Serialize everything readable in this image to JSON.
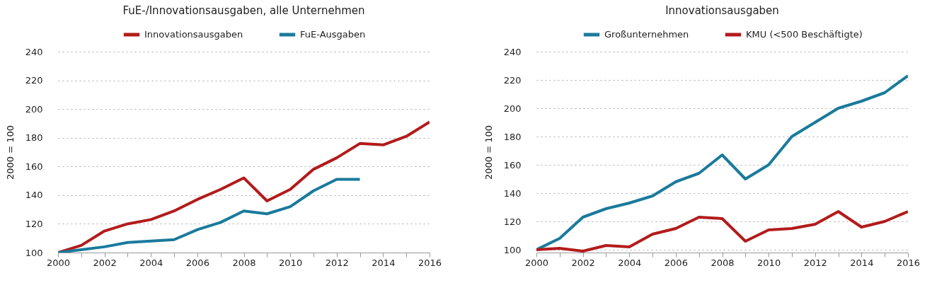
{
  "chart_data": [
    {
      "type": "line",
      "title": "FuE-/Innovationsausgaben, alle Unternehmen",
      "ylabel": "2000 = 100",
      "x": [
        2000,
        2001,
        2002,
        2003,
        2004,
        2005,
        2006,
        2007,
        2008,
        2009,
        2010,
        2011,
        2012,
        2013,
        2014,
        2015,
        2016
      ],
      "series": [
        {
          "name": "Innovationsausgaben",
          "color": "#b31b1b",
          "values": [
            100,
            105,
            115,
            120,
            123,
            129,
            137,
            144,
            152,
            136,
            144,
            158,
            166,
            176,
            175,
            181,
            191
          ]
        },
        {
          "name": "FuE-Ausgaben",
          "color": "#1a7a9c",
          "values": [
            100,
            102,
            104,
            107,
            108,
            109,
            116,
            121,
            129,
            127,
            132,
            143,
            151,
            151,
            null,
            null,
            null
          ]
        }
      ],
      "xlim": [
        2000,
        2016
      ],
      "xticks": [
        2000,
        {
          "value": 2001,
          "label": null
        },
        2002,
        {
          "value": 2003,
          "label": null
        },
        2004,
        {
          "value": 2005,
          "label": null
        },
        2006,
        {
          "value": 2007,
          "label": null
        },
        2008,
        {
          "value": 2009,
          "label": null
        },
        2010,
        {
          "value": 2011,
          "label": null
        },
        2012,
        {
          "value": 2013,
          "label": null
        },
        2014,
        {
          "value": 2015,
          "label": null
        },
        2016
      ],
      "ylim": [
        100,
        240
      ],
      "yticks": [
        100,
        120,
        140,
        160,
        180,
        200,
        220,
        240
      ],
      "grid": "y",
      "legend": "top",
      "line_style": "solid"
    },
    {
      "type": "line",
      "title": "Innovationsausgaben",
      "ylabel": "2000 = 100",
      "x": [
        2000,
        2001,
        2002,
        2003,
        2004,
        2005,
        2006,
        2007,
        2008,
        2009,
        2010,
        2011,
        2012,
        2013,
        2014,
        2015,
        2016
      ],
      "series": [
        {
          "name": "Großunternehmen",
          "color": "#1a7a9c",
          "values": [
            100,
            108,
            123,
            129,
            133,
            138,
            148,
            154,
            167,
            150,
            160,
            180,
            190,
            200,
            205,
            211,
            223
          ]
        },
        {
          "name": "KMU (<500 Beschäftigte)",
          "color": "#b31b1b",
          "values": [
            100,
            101,
            99,
            103,
            102,
            111,
            115,
            123,
            122,
            106,
            114,
            115,
            118,
            127,
            116,
            120,
            127
          ]
        }
      ],
      "xlim": [
        2000,
        2016
      ],
      "xticks": [
        2000,
        {
          "value": 2001,
          "label": null
        },
        2002,
        {
          "value": 2003,
          "label": null
        },
        2004,
        {
          "value": 2005,
          "label": null
        },
        2006,
        {
          "value": 2007,
          "label": null
        },
        2008,
        {
          "value": 2009,
          "label": null
        },
        2010,
        {
          "value": 2011,
          "label": null
        },
        2012,
        {
          "value": 2013,
          "label": null
        },
        2014,
        {
          "value": 2015,
          "label": null
        },
        2016
      ],
      "ylim": [
        98,
        240
      ],
      "yticks": [
        100,
        120,
        140,
        160,
        180,
        200,
        220,
        240
      ],
      "grid": "y",
      "legend": "top",
      "line_style": "solid"
    }
  ]
}
